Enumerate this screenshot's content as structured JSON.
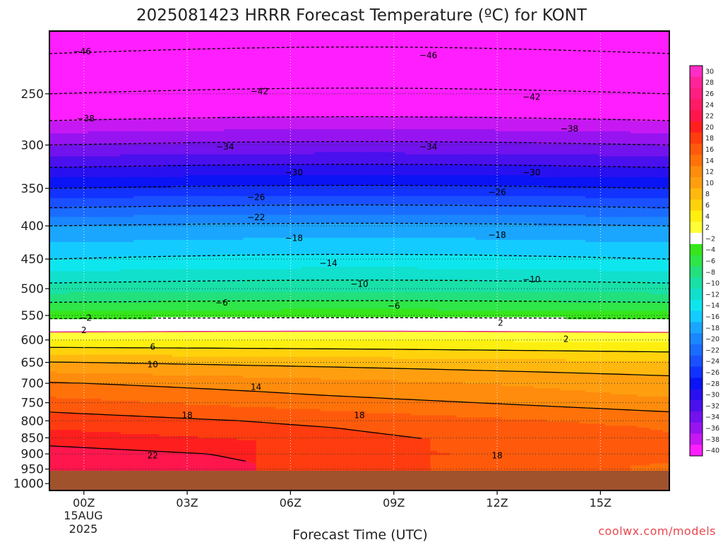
{
  "chart_data": {
    "type": "heatmap",
    "title": "2025081423 HRRR Forecast Temperature (ºC) for KONT",
    "xlabel": "Forecast Time (UTC)",
    "ylabel": "",
    "x_ticks": [
      "00Z",
      "03Z",
      "06Z",
      "09Z",
      "12Z",
      "15Z"
    ],
    "x_tick_hours": [
      0,
      3,
      6,
      9,
      12,
      15
    ],
    "x_date_labels": [
      "15AUG",
      "2025"
    ],
    "xlim_hours": [
      -1,
      17
    ],
    "y_ticks": [
      250,
      300,
      350,
      400,
      450,
      500,
      550,
      600,
      650,
      700,
      750,
      800,
      850,
      900,
      950,
      1000
    ],
    "ylim_hpa": [
      1025,
      200
    ],
    "y_scale": "log-pressure",
    "ground_level_hpa": 975,
    "colorbar": {
      "levels": [
        30,
        28,
        26,
        24,
        22,
        20,
        18,
        16,
        14,
        12,
        10,
        8,
        6,
        4,
        2,
        -2,
        -4,
        -6,
        -8,
        -10,
        -12,
        -14,
        -16,
        -18,
        -20,
        -22,
        -24,
        -26,
        -28,
        -30,
        -32,
        -34,
        -36,
        -38,
        -40
      ],
      "colors": [
        "#ff2dc6",
        "#ff2498",
        "#ff1f80",
        "#ff1a66",
        "#ff164d",
        "#ff1f1f",
        "#ff3c0f",
        "#ff5a0c",
        "#ff720a",
        "#ff8c0c",
        "#ff9f10",
        "#ffb80f",
        "#ffd20c",
        "#ffef10",
        "#ffff38",
        "#ffffff",
        "#36e61a",
        "#2ee648",
        "#22e07c",
        "#18e0a6",
        "#10e0cc",
        "#0ee6ee",
        "#14cbff",
        "#1aa6ff",
        "#1a86ff",
        "#1a6cff",
        "#1a50ff",
        "#1232ff",
        "#0a14f5",
        "#2810f0",
        "#4a10ee",
        "#7212ee",
        "#9714f0",
        "#c618f2",
        "#ff1eff"
      ],
      "white_band": [
        -2,
        2
      ]
    },
    "contour_labels": [
      {
        "value": -46,
        "hour": -0.05,
        "p": 215
      },
      {
        "value": -46,
        "hour": 10.0,
        "p": 218
      },
      {
        "value": -42,
        "hour": 5.1,
        "p": 248
      },
      {
        "value": -42,
        "hour": 13.0,
        "p": 253
      },
      {
        "value": -38,
        "hour": 0.05,
        "p": 273
      },
      {
        "value": -38,
        "hour": 14.1,
        "p": 283
      },
      {
        "value": -34,
        "hour": 4.1,
        "p": 302
      },
      {
        "value": -34,
        "hour": 10.0,
        "p": 302
      },
      {
        "value": -30,
        "hour": 6.1,
        "p": 331
      },
      {
        "value": -30,
        "hour": 13.0,
        "p": 331
      },
      {
        "value": -26,
        "hour": 5.0,
        "p": 361
      },
      {
        "value": -26,
        "hour": 12.0,
        "p": 355
      },
      {
        "value": -22,
        "hour": 5.0,
        "p": 388
      },
      {
        "value": -18,
        "hour": 6.1,
        "p": 418
      },
      {
        "value": -18,
        "hour": 12.0,
        "p": 413
      },
      {
        "value": -14,
        "hour": 7.1,
        "p": 457
      },
      {
        "value": -10,
        "hour": 8.0,
        "p": 492
      },
      {
        "value": -10,
        "hour": 13.0,
        "p": 484
      },
      {
        "value": -6,
        "hour": 4.0,
        "p": 526
      },
      {
        "value": -6,
        "hour": 9.0,
        "p": 532
      },
      {
        "value": -2,
        "hour": 0.05,
        "p": 555
      },
      {
        "value": 2,
        "hour": 0.0,
        "p": 580
      },
      {
        "value": 2,
        "hour": 12.1,
        "p": 565
      },
      {
        "value": 2,
        "hour": 14.0,
        "p": 598
      },
      {
        "value": 6,
        "hour": 2.0,
        "p": 615
      },
      {
        "value": 10,
        "hour": 2.0,
        "p": 655
      },
      {
        "value": 14,
        "hour": 5.0,
        "p": 710
      },
      {
        "value": 18,
        "hour": 3.0,
        "p": 785
      },
      {
        "value": 18,
        "hour": 8.0,
        "p": 785
      },
      {
        "value": 18,
        "hour": 12.0,
        "p": 905
      },
      {
        "value": 22,
        "hour": 2.0,
        "p": 905
      }
    ]
  },
  "footer": {
    "credit": "coolwx.com/models"
  }
}
